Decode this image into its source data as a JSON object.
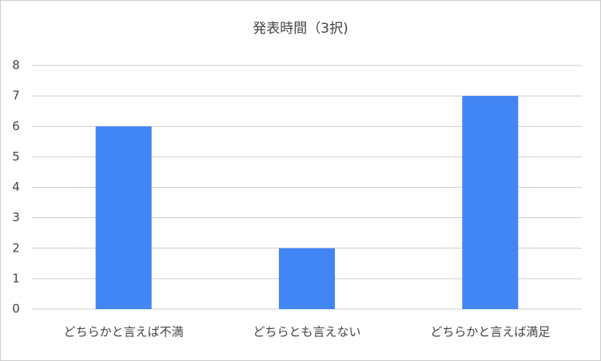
{
  "chart_data": {
    "type": "bar",
    "title": "発表時間（3択)",
    "categories": [
      "どちらかと言えば不満",
      "どちらとも言えない",
      "どちらかと言えば満足"
    ],
    "values": [
      6,
      2,
      7
    ],
    "color": "#4285f4",
    "ylim": [
      0,
      8
    ],
    "yticks": [
      0,
      1,
      2,
      3,
      4,
      5,
      6,
      7,
      8
    ],
    "grid": true
  }
}
